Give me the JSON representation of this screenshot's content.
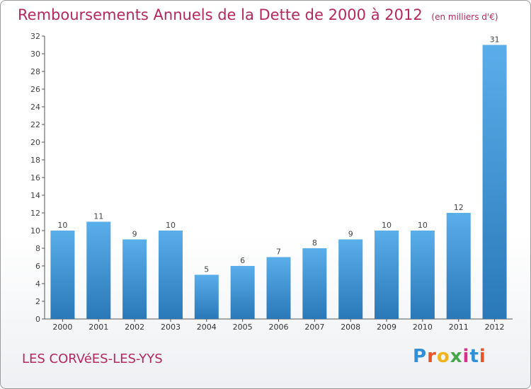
{
  "header": {
    "title": "Remboursements Annuels de la Dette de 2000 à 2012",
    "unit": "(en milliers d'€)"
  },
  "footer": {
    "commune": "LES CORVéES-LES-YYS",
    "logo": [
      "P",
      "r",
      "o",
      "x",
      "i",
      "t",
      "i"
    ]
  },
  "colors": {
    "title": "#b5285f",
    "bar_top": "#5aaeea",
    "bar_bottom": "#2a78b8"
  },
  "chart_data": {
    "type": "bar",
    "title": "Remboursements Annuels de la Dette de 2000 à 2012",
    "categories": [
      "2000",
      "2001",
      "2002",
      "2003",
      "2004",
      "2005",
      "2006",
      "2007",
      "2008",
      "2009",
      "2010",
      "2011",
      "2012"
    ],
    "values": [
      10,
      11,
      9,
      10,
      5,
      6,
      7,
      8,
      9,
      10,
      10,
      12,
      31
    ],
    "ylim": [
      0,
      32
    ],
    "yticks": [
      0,
      2,
      4,
      6,
      8,
      10,
      12,
      14,
      16,
      18,
      20,
      22,
      24,
      26,
      28,
      30,
      32
    ],
    "grid": false,
    "legend": "none"
  }
}
